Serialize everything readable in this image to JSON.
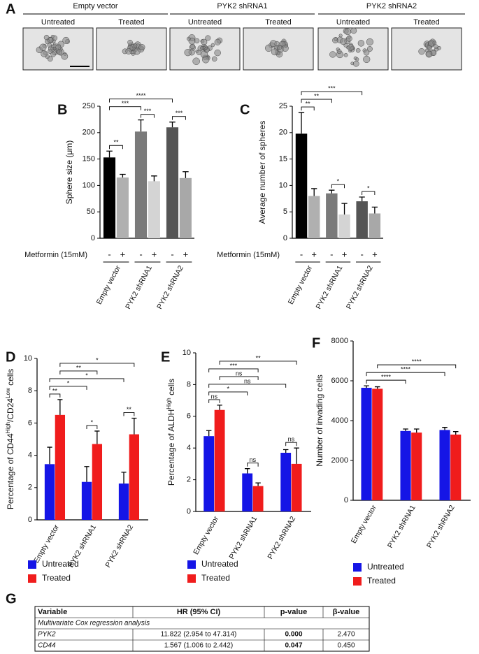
{
  "panel_a": {
    "panel": "A",
    "groups": [
      {
        "name": "Empty vector",
        "conditions": [
          "Untreated",
          "Treated"
        ]
      },
      {
        "name": "PYK2 shRNA1",
        "conditions": [
          "Untreated",
          "Treated"
        ]
      },
      {
        "name": "PYK2 shRNA2",
        "conditions": [
          "Untreated",
          "Treated"
        ]
      }
    ]
  },
  "chart_data": [
    {
      "type": "bar",
      "panel": "B",
      "ylabel": "Sphere size (μm)",
      "row_label": "Metformin (15mM)",
      "categories": [
        "-",
        "+",
        "-",
        "+",
        "-",
        "+"
      ],
      "groups": [
        "Empty vector",
        "PYK2 shRNA1",
        "PYK2 shRNA2"
      ],
      "values": [
        153,
        115,
        202,
        108,
        210,
        114
      ],
      "errors": [
        12,
        6,
        22,
        10,
        10,
        12
      ],
      "colors": [
        "#000000",
        "#b0b0b0",
        "#7a7a7a",
        "#d4d4d4",
        "#555555",
        "#a8a8a8"
      ],
      "ylim": [
        0,
        250
      ],
      "yticks": [
        0,
        50,
        100,
        150,
        200,
        250
      ],
      "annotations": [
        {
          "label": "**",
          "between": [
            0,
            1
          ]
        },
        {
          "label": "***",
          "between": [
            2,
            3
          ]
        },
        {
          "label": "***",
          "between": [
            4,
            5
          ]
        },
        {
          "label": "***",
          "between": [
            0,
            2
          ]
        },
        {
          "label": "****",
          "between": [
            0,
            4
          ]
        }
      ]
    },
    {
      "type": "bar",
      "panel": "C",
      "ylabel": "Average number of spheres",
      "row_label": "Metformin (15mM)",
      "categories": [
        "-",
        "+",
        "-",
        "+",
        "-",
        "+"
      ],
      "groups": [
        "Empty vector",
        "PYK2 shRNA1",
        "PYK2 shRNA2"
      ],
      "values": [
        19.8,
        8,
        8.5,
        4.5,
        7,
        4.7
      ],
      "errors": [
        4,
        1.4,
        0.6,
        2.1,
        0.8,
        1.2
      ],
      "colors": [
        "#000000",
        "#b0b0b0",
        "#7a7a7a",
        "#d4d4d4",
        "#555555",
        "#a8a8a8"
      ],
      "ylim": [
        0,
        25
      ],
      "yticks": [
        0,
        5,
        10,
        15,
        20,
        25
      ],
      "annotations": [
        {
          "label": "**",
          "between": [
            0,
            1
          ]
        },
        {
          "label": "*",
          "between": [
            2,
            3
          ]
        },
        {
          "label": "*",
          "between": [
            4,
            5
          ]
        },
        {
          "label": "**",
          "between": [
            0,
            2
          ]
        },
        {
          "label": "***",
          "between": [
            0,
            4
          ]
        }
      ]
    },
    {
      "type": "grouped_bar",
      "panel": "D",
      "ylabel": [
        "Percentage of CD44",
        "High",
        "/CD24",
        "Low",
        " cells"
      ],
      "categories": [
        "Empty vector",
        "PYK2 shRNA1",
        "PYK2 shRNA2"
      ],
      "series": [
        {
          "name": "Untreated",
          "color": "#1515e6",
          "values": [
            3.45,
            2.35,
            2.25
          ],
          "errors": [
            1.05,
            0.95,
            0.7
          ]
        },
        {
          "name": "Treated",
          "color": "#f01c1c",
          "values": [
            6.5,
            4.7,
            5.3
          ],
          "errors": [
            0.95,
            0.8,
            1.0
          ]
        }
      ],
      "ylim": [
        0,
        10
      ],
      "yticks": [
        0,
        2,
        4,
        6,
        8,
        10
      ],
      "annotations": [
        {
          "label": "**",
          "between": [
            0,
            1
          ]
        },
        {
          "label": "*",
          "between": [
            2,
            3
          ]
        },
        {
          "label": "**",
          "between": [
            4,
            5
          ]
        },
        {
          "label": "*",
          "between": [
            0,
            2
          ]
        },
        {
          "label": "*",
          "between": [
            0,
            4
          ]
        },
        {
          "label": "**",
          "between": [
            1,
            3
          ]
        },
        {
          "label": "*",
          "between": [
            1,
            5
          ]
        }
      ]
    },
    {
      "type": "grouped_bar",
      "panel": "E",
      "ylabel": [
        "Percentage of ALDH",
        "High",
        " cells"
      ],
      "categories": [
        "Empty vector",
        "PYK2 shRNA1",
        "PYK2 shRNA2"
      ],
      "series": [
        {
          "name": "Untreated",
          "color": "#1515e6",
          "values": [
            4.75,
            2.4,
            3.7
          ],
          "errors": [
            0.35,
            0.3,
            0.2
          ]
        },
        {
          "name": "Treated",
          "color": "#f01c1c",
          "values": [
            6.4,
            1.6,
            3.0
          ],
          "errors": [
            0.3,
            0.2,
            1.0
          ]
        }
      ],
      "ylim": [
        0,
        10
      ],
      "yticks": [
        0,
        2,
        4,
        6,
        8,
        10
      ],
      "annotations": [
        {
          "label": "ns",
          "between": [
            0,
            1
          ]
        },
        {
          "label": "ns",
          "between": [
            2,
            3
          ]
        },
        {
          "label": "ns",
          "between": [
            4,
            5
          ]
        },
        {
          "label": "*",
          "between": [
            0,
            2
          ]
        },
        {
          "label": "ns",
          "between": [
            0,
            4
          ]
        },
        {
          "label": "ns",
          "between": [
            1,
            3
          ]
        },
        {
          "label": "***",
          "between": [
            0,
            3
          ]
        },
        {
          "label": "**",
          "between": [
            1,
            5
          ]
        }
      ]
    },
    {
      "type": "grouped_bar",
      "panel": "F",
      "ylabel": "Number of invading cells",
      "categories": [
        "Empty vector",
        "PYK2 shRNA1",
        "PYK2 shRNA2"
      ],
      "series": [
        {
          "name": "Untreated",
          "color": "#1515e6",
          "values": [
            5650,
            3480,
            3530
          ],
          "errors": [
            100,
            100,
            130
          ]
        },
        {
          "name": "Treated",
          "color": "#f01c1c",
          "values": [
            5600,
            3400,
            3300
          ],
          "errors": [
            100,
            180,
            150
          ]
        }
      ],
      "ylim": [
        0,
        8000
      ],
      "yticks": [
        0,
        2000,
        4000,
        6000,
        8000
      ],
      "annotations": [
        {
          "label": "****",
          "between": [
            0,
            2
          ]
        },
        {
          "label": "****",
          "between": [
            0,
            4
          ]
        },
        {
          "label": "****",
          "between": [
            1,
            5
          ]
        }
      ]
    }
  ],
  "table": {
    "panel": "G",
    "columns": [
      "Variable",
      "HR (95% CI)",
      "p-value",
      "β-value"
    ],
    "section": "Multivariate Cox regression analysis",
    "rows": [
      [
        "PYK2",
        "11.822 (2.954 to 47.314)",
        "0.000",
        "2.470"
      ],
      [
        "CD44",
        "1.567 (1.006 to 2.442)",
        "0.047",
        "0.450"
      ]
    ]
  }
}
